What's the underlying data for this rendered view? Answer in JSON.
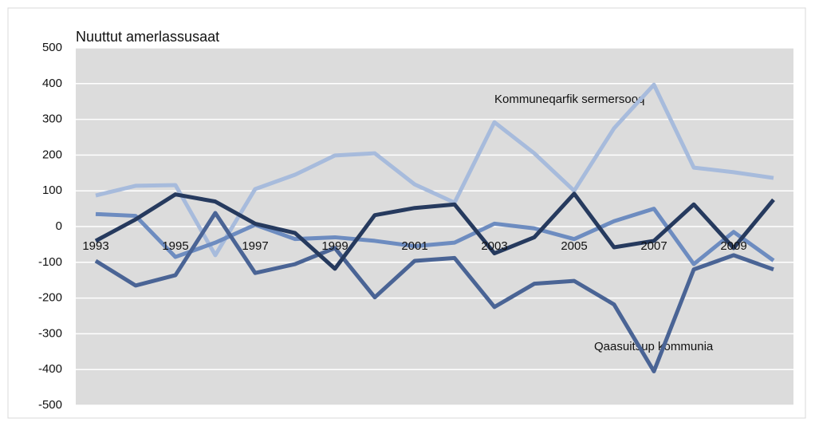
{
  "chart_data": {
    "type": "line",
    "title": "Nuuttut amerlassusaat",
    "categories": [
      "1993",
      null,
      "1995",
      null,
      "1997",
      null,
      "1999",
      null,
      "2001",
      null,
      "2003",
      null,
      "2005",
      null,
      "2007",
      null,
      "2009",
      null
    ],
    "series": [
      {
        "name": "Kommuneqarfik sermersooq",
        "color": "#a7bbdc",
        "values": [
          87,
          114,
          116,
          -80,
          105,
          145,
          199,
          205,
          118,
          67,
          292,
          205,
          100,
          275,
          397,
          165,
          152,
          136
        ]
      },
      {
        "color": "#6d8cc0",
        "values": [
          35,
          30,
          -85,
          -45,
          5,
          -35,
          -30,
          -40,
          -55,
          -45,
          8,
          -5,
          -35,
          15,
          50,
          -105,
          -15,
          -95
        ]
      },
      {
        "name": "Qaasuitsup kommunia",
        "color": "#4a6495",
        "values": [
          -96,
          -165,
          -136,
          38,
          -130,
          -105,
          -60,
          -198,
          -96,
          -88,
          -225,
          -160,
          -152,
          -218,
          -405,
          -120,
          -80,
          -120
        ]
      },
      {
        "color": "#263a5e",
        "values": [
          -40,
          20,
          90,
          70,
          8,
          -18,
          -118,
          32,
          52,
          62,
          -75,
          -30,
          92,
          -58,
          -40,
          62,
          -60,
          75
        ]
      }
    ],
    "ylim": [
      -500,
      500
    ],
    "yticks": [
      -500,
      -400,
      -300,
      -200,
      -100,
      0,
      100,
      200,
      300,
      400,
      500
    ],
    "grid": true
  }
}
